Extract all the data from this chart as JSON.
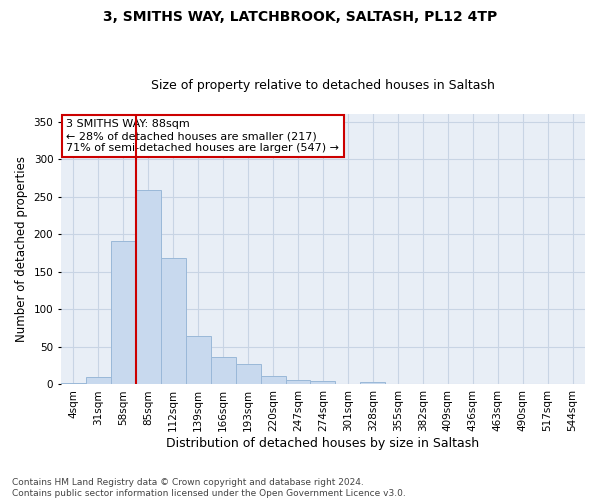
{
  "title1": "3, SMITHS WAY, LATCHBROOK, SALTASH, PL12 4TP",
  "title2": "Size of property relative to detached houses in Saltash",
  "xlabel": "Distribution of detached houses by size in Saltash",
  "ylabel": "Number of detached properties",
  "bar_values": [
    2,
    10,
    191,
    259,
    168,
    65,
    37,
    27,
    11,
    6,
    4,
    0,
    3,
    0,
    1,
    0,
    0,
    0,
    1,
    0,
    1
  ],
  "bar_labels": [
    "4sqm",
    "31sqm",
    "58sqm",
    "85sqm",
    "112sqm",
    "139sqm",
    "166sqm",
    "193sqm",
    "220sqm",
    "247sqm",
    "274sqm",
    "301sqm",
    "328sqm",
    "355sqm",
    "382sqm",
    "409sqm",
    "436sqm",
    "463sqm",
    "490sqm",
    "517sqm",
    "544sqm"
  ],
  "bar_color": "#c8d9ee",
  "bar_edge_color": "#9ab8d8",
  "bar_edge_width": 0.7,
  "grid_color": "#c8d4e4",
  "bg_color": "#e8eef6",
  "vline_color": "#cc0000",
  "vline_index": 2.5,
  "annotation_text": "3 SMITHS WAY: 88sqm\n← 28% of detached houses are smaller (217)\n71% of semi-detached houses are larger (547) →",
  "annotation_box_color": "white",
  "annotation_box_edgecolor": "#cc0000",
  "ylim": [
    0,
    360
  ],
  "yticks": [
    0,
    50,
    100,
    150,
    200,
    250,
    300,
    350
  ],
  "footnote": "Contains HM Land Registry data © Crown copyright and database right 2024.\nContains public sector information licensed under the Open Government Licence v3.0.",
  "title1_fontsize": 10,
  "title2_fontsize": 9,
  "xlabel_fontsize": 9,
  "ylabel_fontsize": 8.5,
  "tick_fontsize": 7.5,
  "annotation_fontsize": 8,
  "footnote_fontsize": 6.5
}
